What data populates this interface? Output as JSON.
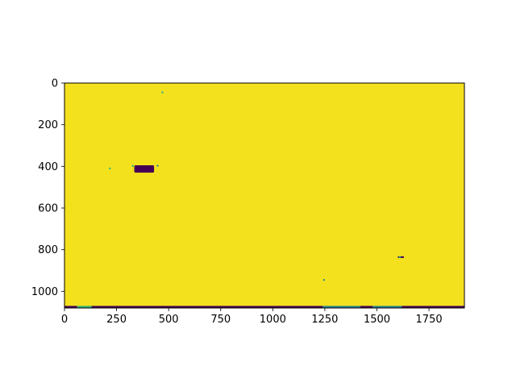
{
  "chart_data": {
    "type": "heatmap",
    "title": "",
    "xlabel": "",
    "ylabel": "",
    "colormap": "viridis",
    "image_size": {
      "width": 1920,
      "height": 1080
    },
    "xlim": [
      0,
      1920
    ],
    "ylim": [
      1080,
      0
    ],
    "x_ticks": [
      0,
      250,
      500,
      750,
      1000,
      1250,
      1500,
      1750
    ],
    "x_tick_labels": [
      "0",
      "250",
      "500",
      "750",
      "1000",
      "1250",
      "1500",
      "1750"
    ],
    "y_ticks": [
      0,
      200,
      400,
      600,
      800,
      1000
    ],
    "y_tick_labels": [
      "0",
      "200",
      "400",
      "600",
      "800",
      "1000"
    ],
    "background_value": "high",
    "colors": {
      "high": "#f4e11e",
      "low": "#440154",
      "mid_green": "#2fb47c",
      "mid_teal": "#26828e"
    },
    "low_value_regions": [
      {
        "x": [
          335,
          430
        ],
        "y": [
          395,
          430
        ],
        "color": "low"
      },
      {
        "x": [
          1600,
          1630
        ],
        "y": [
          832,
          840
        ],
        "color": "low"
      },
      {
        "x": [
          1242,
          1250
        ],
        "y": [
          940,
          950
        ],
        "color": "mid_teal"
      }
    ],
    "bottom_strip": {
      "y": [
        1070,
        1080
      ],
      "segments": [
        {
          "x": [
            0,
            60
          ],
          "color": "low"
        },
        {
          "x": [
            60,
            130
          ],
          "color": "mid_green"
        },
        {
          "x": [
            130,
            1240
          ],
          "color": "low"
        },
        {
          "x": [
            1240,
            1420
          ],
          "color": "mid_teal"
        },
        {
          "x": [
            1420,
            1480
          ],
          "color": "low"
        },
        {
          "x": [
            1480,
            1620
          ],
          "color": "mid_teal"
        },
        {
          "x": [
            1620,
            1920
          ],
          "color": "low"
        }
      ]
    },
    "speckles": [
      {
        "x": 470,
        "y": 45,
        "color": "mid_green"
      },
      {
        "x": 218,
        "y": 410,
        "color": "mid_green"
      },
      {
        "x": 447,
        "y": 397,
        "color": "mid_teal"
      },
      {
        "x": 328,
        "y": 398,
        "color": "mid_green"
      },
      {
        "x": 1610,
        "y": 836,
        "color": "mid_green"
      }
    ]
  }
}
